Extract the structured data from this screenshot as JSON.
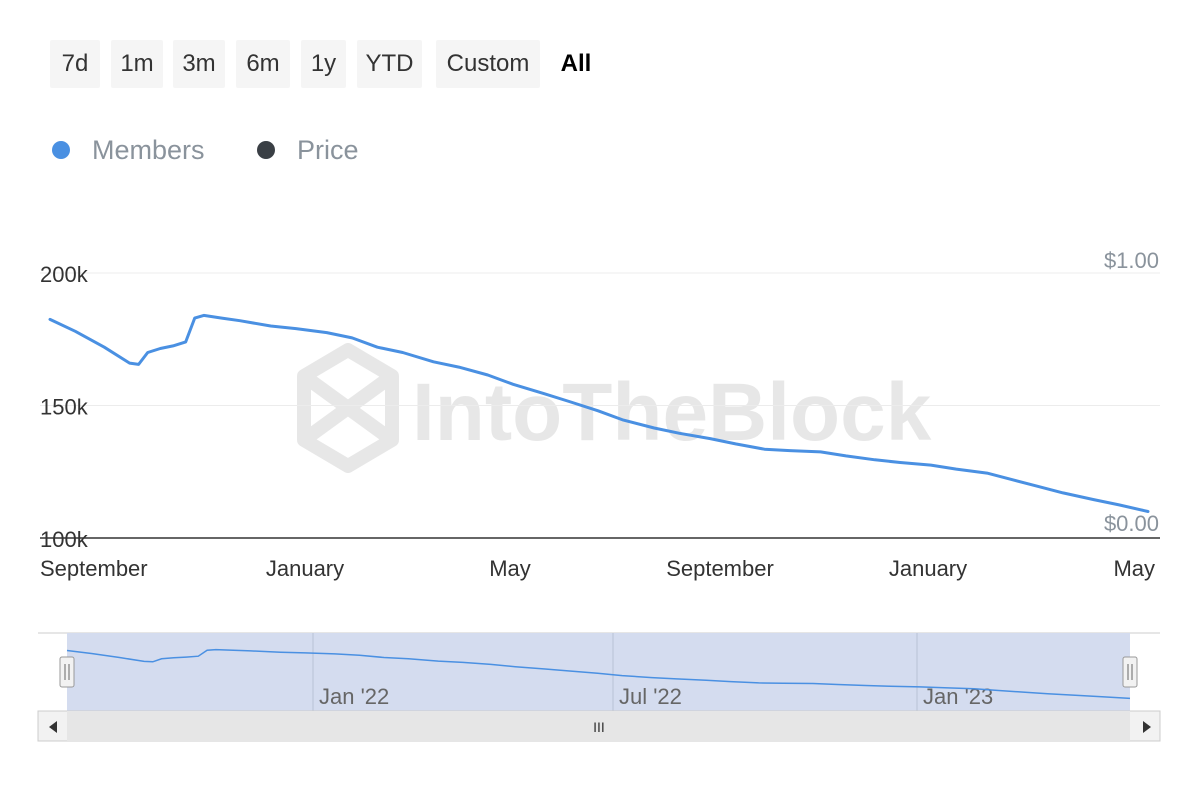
{
  "range_selector": {
    "buttons": [
      {
        "label": "7d",
        "active": false
      },
      {
        "label": "1m",
        "active": false
      },
      {
        "label": "3m",
        "active": false
      },
      {
        "label": "6m",
        "active": false
      },
      {
        "label": "1y",
        "active": false
      },
      {
        "label": "YTD",
        "active": false
      },
      {
        "label": "Custom",
        "active": false
      },
      {
        "label": "All",
        "active": true
      }
    ]
  },
  "watermark": "IntoTheBlock",
  "navigator": {
    "labels": [
      "Jan '22",
      "Jul '22",
      "Jan '23"
    ],
    "scroll_grip": "III"
  },
  "colors": {
    "members": "#4a90e2",
    "price": "#3a3f45",
    "grid": "#ececec",
    "navigator_mask": "#d4dcef",
    "scrollbar": "#e6e6e6"
  },
  "chart_data": {
    "type": "line",
    "legend": [
      {
        "name": "Members",
        "color": "#4a90e2"
      },
      {
        "name": "Price",
        "color": "#3a3f45"
      }
    ],
    "x_tick_labels": [
      "September",
      "January",
      "May",
      "September",
      "January",
      "May"
    ],
    "x_range": [
      "2021-09-01",
      "2023-05-01"
    ],
    "y_left": {
      "ticks": [
        "100k",
        "150k",
        "200k"
      ],
      "range": [
        100000,
        200000
      ]
    },
    "y_right": {
      "ticks": [
        "$0.00",
        "$1.00"
      ],
      "range": [
        0,
        1
      ]
    },
    "grid": true,
    "legend_position": "top-left",
    "series": [
      {
        "name": "Members",
        "points": [
          [
            "2021-09-01",
            182500
          ],
          [
            "2021-09-15",
            178000
          ],
          [
            "2021-10-01",
            172000
          ],
          [
            "2021-10-15",
            166000
          ],
          [
            "2021-10-20",
            165500
          ],
          [
            "2021-10-25",
            170000
          ],
          [
            "2021-11-01",
            171500
          ],
          [
            "2021-11-08",
            172500
          ],
          [
            "2021-11-15",
            174000
          ],
          [
            "2021-11-20",
            183000
          ],
          [
            "2021-11-25",
            184000
          ],
          [
            "2021-12-05",
            183000
          ],
          [
            "2021-12-15",
            182000
          ],
          [
            "2022-01-01",
            180000
          ],
          [
            "2022-01-15",
            179000
          ],
          [
            "2022-02-01",
            177500
          ],
          [
            "2022-02-15",
            175500
          ],
          [
            "2022-03-01",
            172000
          ],
          [
            "2022-03-15",
            170000
          ],
          [
            "2022-04-01",
            166500
          ],
          [
            "2022-04-15",
            164500
          ],
          [
            "2022-05-01",
            161500
          ],
          [
            "2022-05-15",
            158000
          ],
          [
            "2022-06-01",
            154500
          ],
          [
            "2022-06-15",
            151500
          ],
          [
            "2022-07-01",
            148000
          ],
          [
            "2022-07-15",
            144500
          ],
          [
            "2022-08-01",
            141500
          ],
          [
            "2022-08-15",
            139500
          ],
          [
            "2022-09-01",
            137500
          ],
          [
            "2022-09-15",
            135500
          ],
          [
            "2022-10-01",
            133500
          ],
          [
            "2022-10-15",
            133000
          ],
          [
            "2022-11-01",
            132500
          ],
          [
            "2022-11-15",
            131000
          ],
          [
            "2022-12-01",
            129500
          ],
          [
            "2022-12-15",
            128500
          ],
          [
            "2023-01-01",
            127500
          ],
          [
            "2023-01-15",
            126000
          ],
          [
            "2023-02-01",
            124500
          ],
          [
            "2023-02-15",
            122000
          ],
          [
            "2023-03-01",
            119500
          ],
          [
            "2023-03-15",
            117000
          ],
          [
            "2023-04-01",
            114500
          ],
          [
            "2023-04-15",
            112500
          ],
          [
            "2023-05-01",
            110000
          ]
        ]
      },
      {
        "name": "Price",
        "points": []
      }
    ]
  }
}
